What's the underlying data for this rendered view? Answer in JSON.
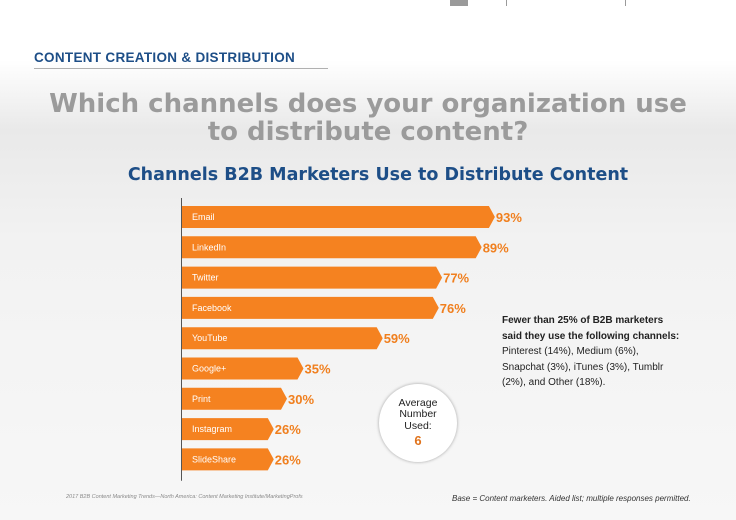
{
  "section": {
    "title": "CONTENT CREATION & DISTRIBUTION"
  },
  "question": {
    "line1": "Which channels does your organization use",
    "line2": "to distribute content?"
  },
  "colors": {
    "bar": "#f58220",
    "value": "#f07f1e",
    "heading": "#1d4e87",
    "question": "#9b9b9b"
  },
  "chart_data": {
    "type": "bar",
    "orientation": "horizontal",
    "title": "Channels B2B Marketers Use to Distribute Content",
    "categories": [
      "Email",
      "LinkedIn",
      "Twitter",
      "Facebook",
      "YouTube",
      "Google+",
      "Print",
      "Instagram",
      "SlideShare"
    ],
    "values": [
      93,
      89,
      77,
      76,
      59,
      35,
      30,
      26,
      26
    ],
    "value_labels": [
      "93%",
      "89%",
      "77%",
      "76%",
      "59%",
      "35%",
      "30%",
      "26%",
      "26%"
    ],
    "unit": "%",
    "xlim": [
      0,
      100
    ],
    "grid": false
  },
  "note": {
    "heading": "Fewer than 25% of B2B marketers said they use the following channels:",
    "body": "Pinterest (14%), Medium (6%), Snapchat (3%), iTunes (3%), Tumblr (2%), and Other (18%)."
  },
  "average": {
    "label": "Average Number Used:",
    "value": "6"
  },
  "footer": {
    "source": "2017 B2B Content Marketing Trends—North America: Content Marketing Institute/MarketingProfs",
    "base": "Base = Content marketers. Aided list; multiple responses permitted."
  }
}
